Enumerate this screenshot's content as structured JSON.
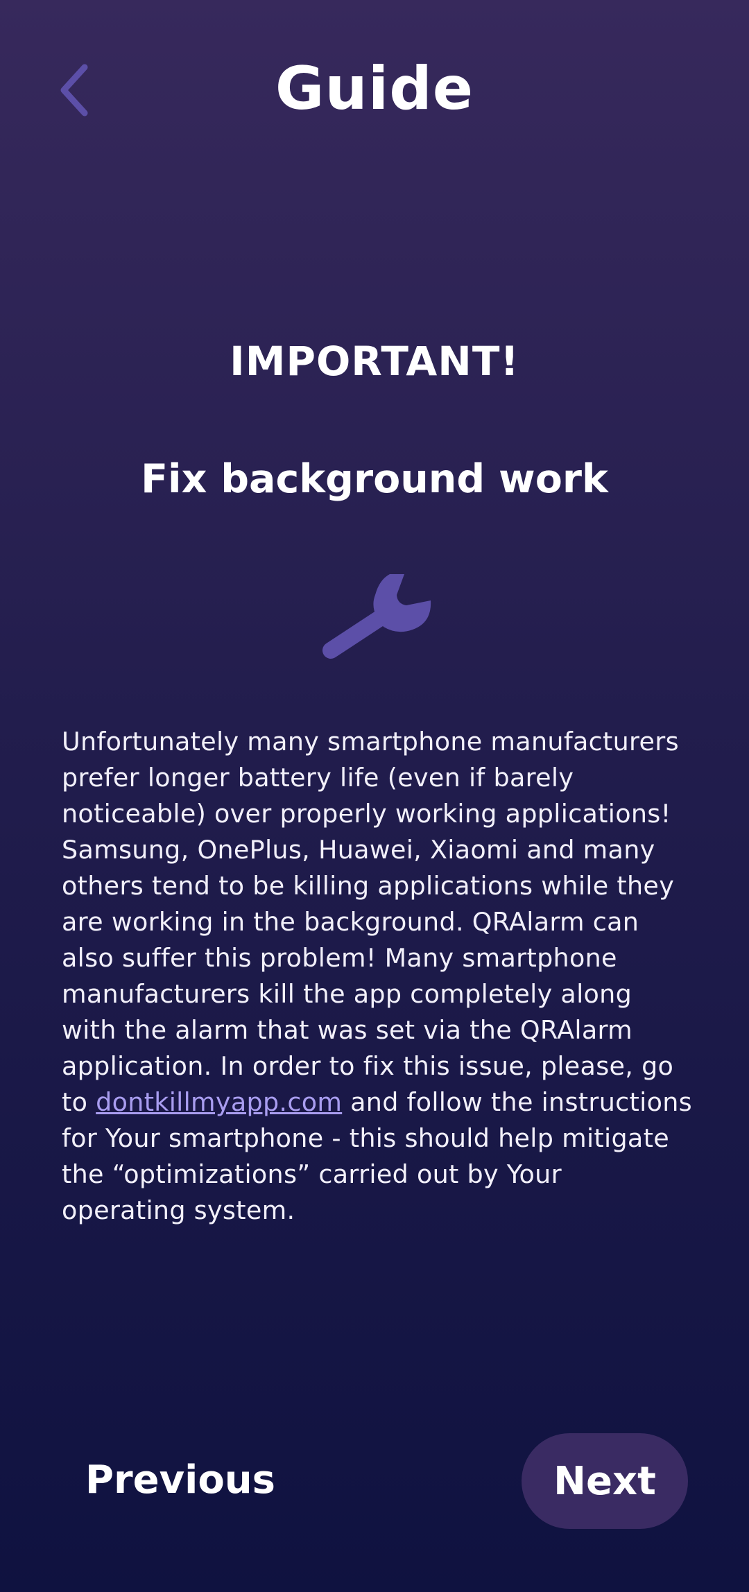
{
  "header": {
    "title": "Guide",
    "back_icon": "chevron-left-icon"
  },
  "content": {
    "heading": "IMPORTANT!",
    "subheading": "Fix background work",
    "icon": "wrench-icon",
    "body_before_link": "Unfortunately many smartphone manufacturers prefer longer battery life (even if barely noticeable) over properly working applications! Samsung, OnePlus, Huawei, Xiaomi and many others tend to be killing applications while they are working in the background. QRAlarm can also suffer this problem! Many smartphone manufacturers kill the app completely along with the alarm that was set via the QRAlarm application. In order to fix this issue, please, go to ",
    "link_text": "dontkillmyapp.com",
    "body_after_link": " and follow the instructions for Your smartphone - this should help mitigate the “optimizations” carried out by Your operating system."
  },
  "footer": {
    "previous_label": "Previous",
    "next_label": "Next"
  },
  "colors": {
    "accent": "#5c4fa8",
    "link": "#a99df0",
    "next_button_bg": "#3a2b63",
    "background_top": "#37295c",
    "background_bottom": "#0f1240"
  }
}
